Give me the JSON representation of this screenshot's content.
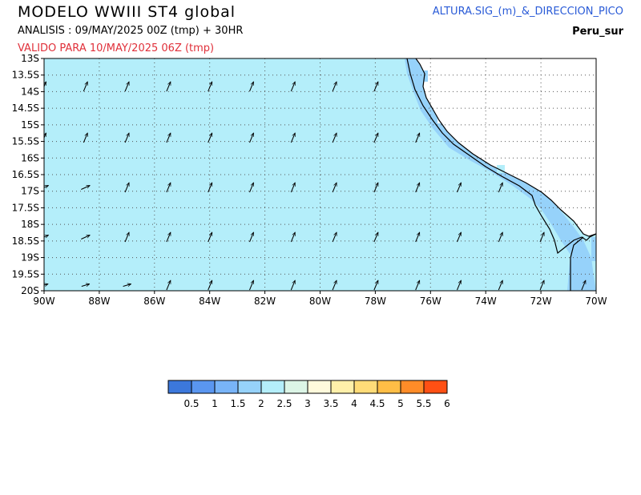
{
  "header": {
    "title": "MODELO  WWIII  ST4  global",
    "analysis": "ANALISIS : 09/MAY/2025 00Z  (tmp) + 30HR",
    "valid": "VALIDO PARA  10/MAY/2025 06Z  (tmp)",
    "variable": "ALTURA.SIG_(m)_&_DIRECCION_PICO",
    "region": "Peru_sur"
  },
  "map": {
    "lon_range": [
      -90,
      -70
    ],
    "lat_range": [
      -20,
      -13
    ],
    "lon_ticks": [
      "90W",
      "88W",
      "86W",
      "84W",
      "82W",
      "80W",
      "78W",
      "76W",
      "74W",
      "72W",
      "70W"
    ],
    "lat_ticks": [
      "13S",
      "13.5S",
      "14S",
      "14.5S",
      "15S",
      "15.5S",
      "16S",
      "16.5S",
      "17S",
      "17.5S",
      "18S",
      "18.5S",
      "19S",
      "19.5S",
      "20S"
    ],
    "grid": "dotted",
    "open_sea_color": "#b4eefa",
    "coastal_band_color": "#96d2fa",
    "wave_direction": "arrows pointing north-east"
  },
  "colorbar": {
    "colors": [
      "#3c78dc",
      "#5a96f0",
      "#78b4f8",
      "#96d2fa",
      "#b4eefa",
      "#dcf5e6",
      "#fffadc",
      "#fff0aa",
      "#ffdc78",
      "#ffbe46",
      "#ff8c28",
      "#ff5014"
    ],
    "labels": [
      "0.5",
      "1",
      "1.5",
      "2",
      "2.5",
      "3",
      "3.5",
      "4",
      "4.5",
      "5",
      "5.5",
      "6"
    ]
  }
}
